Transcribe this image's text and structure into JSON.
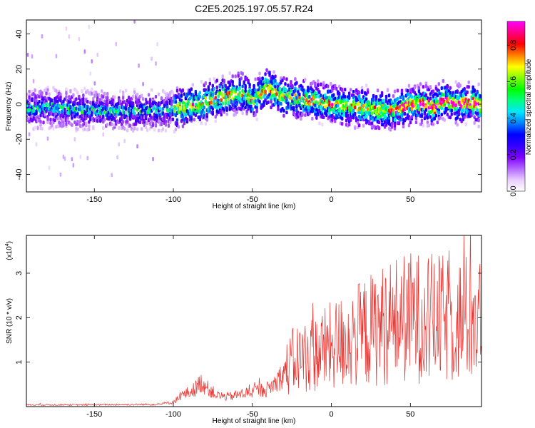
{
  "title": "C2E5.2025.197.05.57.R24",
  "chart_data": [
    {
      "type": "heatmap",
      "xlabel": "Height of straight line (km)",
      "ylabel": "Frequency (Hz)",
      "xlim": [
        -193,
        95
      ],
      "ylim": [
        -50,
        48
      ],
      "xticks": [
        -150,
        -100,
        -50,
        0,
        50
      ],
      "yticks": [
        -40,
        -20,
        0,
        20,
        40
      ],
      "colorbar": {
        "label": "Normalized spectral amplitude",
        "range": [
          0,
          0.93
        ],
        "ticks": [
          0.0,
          0.2,
          0.4,
          0.6,
          0.8
        ],
        "tick_labels": [
          "0.0",
          "0.2",
          "0.4",
          "0.6",
          "0.8"
        ],
        "colors": [
          "#ffffff",
          "#e8ccff",
          "#b266ff",
          "#7f00ff",
          "#3300ff",
          "#0000ff",
          "#0080ff",
          "#00e5ff",
          "#00ff80",
          "#00ff00",
          "#80ff00",
          "#ffff00",
          "#ff8000",
          "#ff0000",
          "#ff0080",
          "#ff00ff"
        ]
      },
      "ridge": {
        "x": [
          -193,
          -180,
          -160,
          -140,
          -120,
          -100,
          -85,
          -70,
          -60,
          -55,
          -50,
          -45,
          -40,
          -35,
          -30,
          -20,
          -10,
          0,
          10,
          20,
          30,
          40,
          50,
          60,
          65,
          70,
          80,
          90,
          95
        ],
        "freq": [
          -3,
          -2,
          -3,
          -4,
          -4,
          -3,
          0,
          4,
          6,
          7,
          2,
          6,
          10,
          6,
          4,
          3,
          2,
          0,
          -1,
          -2,
          -3,
          -4,
          0,
          0,
          -2,
          2,
          0,
          1,
          -1
        ]
      }
    },
    {
      "type": "line",
      "xlabel": "Height of straight line (km)",
      "ylabel": "SNR (10 * v/v)",
      "y_multiplier": "(x10",
      "y_multiplier_exp": "4",
      "y_multiplier_close": ")",
      "xlim": [
        -193,
        95
      ],
      "ylim": [
        0,
        3.85
      ],
      "xticks": [
        -150,
        -100,
        -50,
        0,
        50
      ],
      "yticks": [
        1,
        2,
        3
      ],
      "color": "#e8302c",
      "envelope": {
        "x": [
          -193,
          -150,
          -110,
          -100,
          -95,
          -88,
          -82,
          -78,
          -72,
          -65,
          -55,
          -48,
          -40,
          -35,
          -30,
          -25,
          -20,
          -10,
          0,
          10,
          20,
          30,
          40,
          50,
          60,
          70,
          80,
          90,
          95
        ],
        "y": [
          0.04,
          0.04,
          0.05,
          0.1,
          0.25,
          0.35,
          0.55,
          0.4,
          0.25,
          0.22,
          0.3,
          0.35,
          0.4,
          0.55,
          0.75,
          1.0,
          1.1,
          1.2,
          1.35,
          1.5,
          1.65,
          1.8,
          1.95,
          2.0,
          2.0,
          1.95,
          1.95,
          2.0,
          2.0
        ]
      }
    }
  ]
}
